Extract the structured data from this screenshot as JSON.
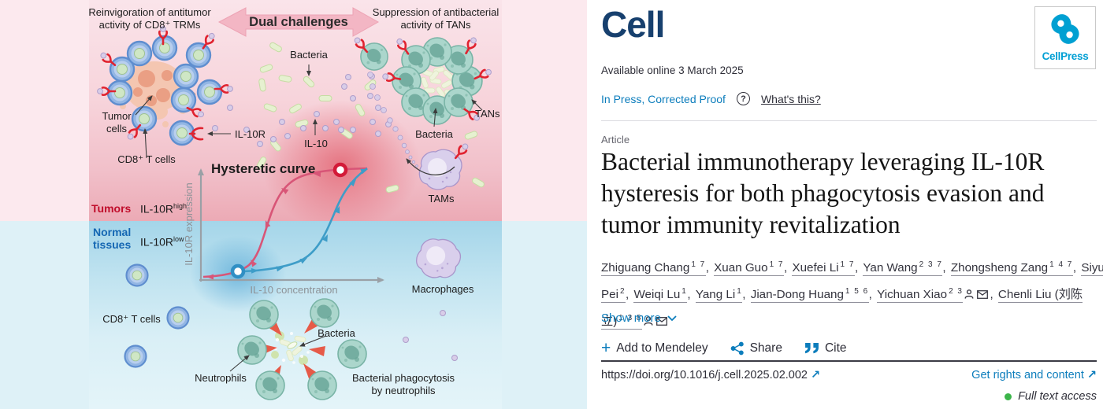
{
  "journal": {
    "name": "Cell",
    "press": "CellPress"
  },
  "meta": {
    "available": "Available online 3 March 2025",
    "in_press": "In Press, Corrected Proof",
    "whats_this": "What's this?",
    "question_mark": "?",
    "article_type": "Article"
  },
  "title": "Bacterial immunotherapy leveraging IL-10R hysteresis for both phagocytosis evasion and tumor immunity revitalization",
  "authors": [
    {
      "name": "Zhiguang Chang",
      "sup": "1 7"
    },
    {
      "name": "Xuan Guo",
      "sup": "1 7"
    },
    {
      "name": "Xuefei Li",
      "sup": "1 7"
    },
    {
      "name": "Yan Wang",
      "sup": "2 3 7"
    },
    {
      "name": "Zhongsheng Zang",
      "sup": "1 4 7"
    },
    {
      "name": "Siyu Pei",
      "sup": "2"
    },
    {
      "name": "Weiqi Lu",
      "sup": "1"
    },
    {
      "name": "Yang Li",
      "sup": "1"
    },
    {
      "name": "Jian-Dong Huang",
      "sup": "1 5 6"
    },
    {
      "name": "Yichuan Xiao",
      "sup": "2 3",
      "person": true,
      "mail": true
    },
    {
      "name": "Chenli Liu (刘陈立)",
      "sup": "1 3 8",
      "person": true,
      "mail": true
    }
  ],
  "actions": {
    "show_more": "Show more",
    "mendeley": "Add to Mendeley",
    "mendeley_plus": "+",
    "share": "Share",
    "cite": "Cite"
  },
  "links": {
    "doi": "https://doi.org/10.1016/j.cell.2025.02.002",
    "rights": "Get rights and content",
    "access": "Full text access",
    "ext_arrow": "↗"
  },
  "figure": {
    "banner": "Dual challenges",
    "top_left_1": "Reinvigoration of antitumor",
    "top_left_2": "activity of CD8⁺ TRMs",
    "top_right_1": "Suppression of antibacterial",
    "top_right_2": "activity of TANs",
    "bacteria": "Bacteria",
    "tumor_cells_1": "Tumor",
    "tumor_cells_2": "cells",
    "cd8_t_cells": "CD8⁺ T cells",
    "il10r": "IL-10R",
    "il10": "IL-10",
    "tans": "TANs",
    "tams": "TAMs",
    "hysteretic": "Hysteretic curve",
    "tumors": "Tumors",
    "il10r_high_base": "IL-10R",
    "il10r_high_sup": "high",
    "normal_1": "Normal",
    "normal_2": "tissues",
    "il10r_low_base": "IL-10R",
    "il10r_low_sup": "low",
    "ylabel": "IL-10R expression",
    "xlabel": "IL-10 concentration",
    "macrophages": "Macrophages",
    "neutrophils": "Neutrophils",
    "phago_1": "Bacterial phagocytosis",
    "phago_2": "by neutrophils"
  },
  "colors": {
    "link_blue": "#0c7dbc",
    "cell_navy": "#17406e",
    "cellpress_blue": "#00a0d2",
    "green_dot": "#3cb54a",
    "tumors_red": "#c00d2b",
    "normal_blue": "#1567b3",
    "curve_red": "#d85577",
    "curve_blue": "#3e9dc8"
  }
}
